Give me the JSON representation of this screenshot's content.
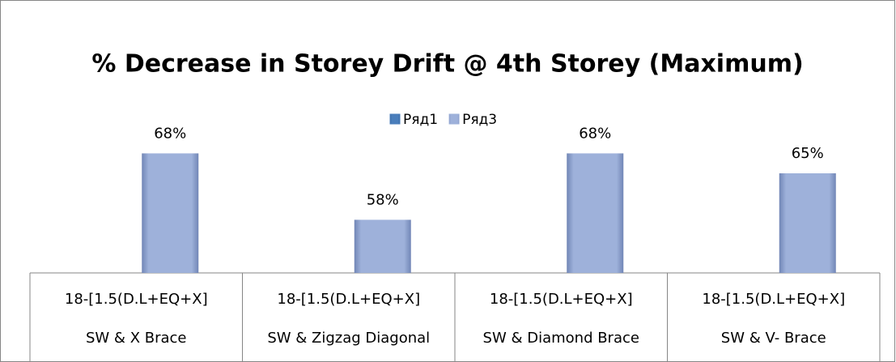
{
  "chart_data": {
    "type": "bar",
    "title": "% Decrease in Storey Drift @ 4th Storey (Maximum)",
    "categories": [
      [
        "18-[1.5(D.L+EQ+X]",
        "SW & X Brace"
      ],
      [
        "18-[1.5(D.L+EQ+X]",
        "SW & Zigzag Diagonal"
      ],
      [
        "18-[1.5(D.L+EQ+X]",
        "SW & Diamond Brace"
      ],
      [
        "18-[1.5(D.L+EQ+X]",
        "SW & V- Brace"
      ]
    ],
    "series": [
      {
        "name": "Ряд1",
        "color": "#4a7ebb",
        "values": [
          null,
          null,
          null,
          null
        ]
      },
      {
        "name": "Ряд3",
        "color": "#9eb1da",
        "values": [
          68,
          58,
          68,
          65
        ],
        "value_labels": [
          "68%",
          "58%",
          "68%",
          "65%"
        ]
      }
    ],
    "ylim": [
      50,
      70
    ],
    "legend": "top"
  }
}
